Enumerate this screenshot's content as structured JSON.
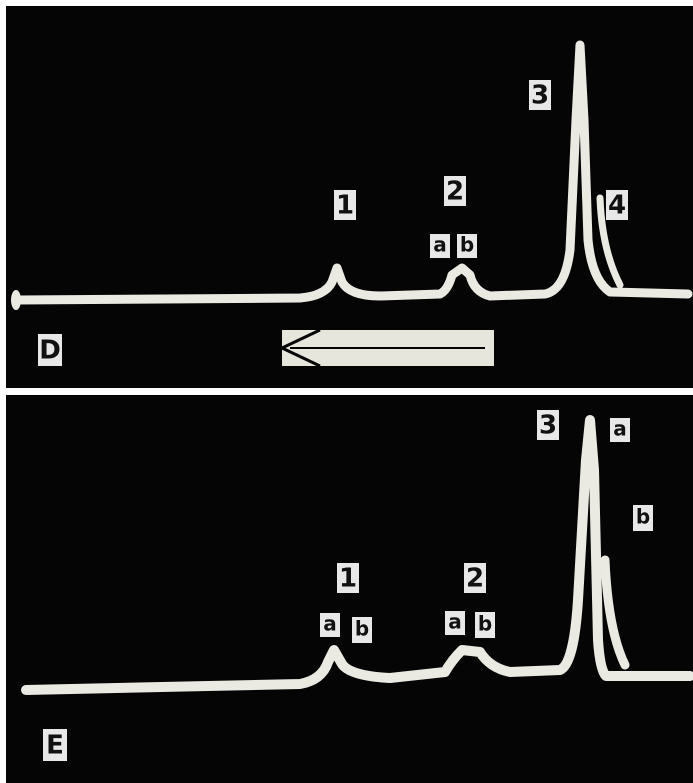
{
  "panels": [
    {
      "panel_label": "D",
      "labels": [
        "1",
        "2",
        "a",
        "b",
        "3",
        "4"
      ]
    },
    {
      "panel_label": "E",
      "labels": [
        "1",
        "a",
        "b",
        "2",
        "a",
        "b",
        "3",
        "a",
        "b"
      ]
    }
  ]
}
